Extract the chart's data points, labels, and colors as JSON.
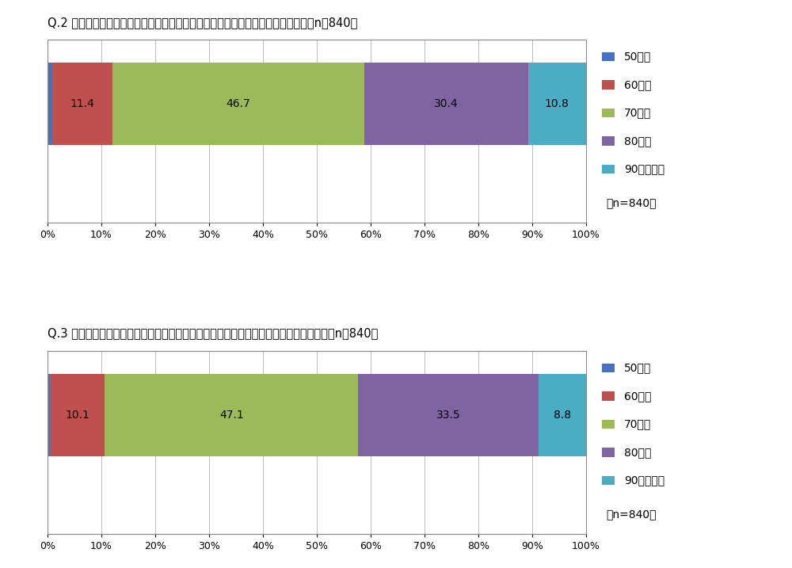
{
  "q2_title": "Q.2 あなたはいくつになったら敦老されたい／敦老されるべきだと思いますか？（n＝840）",
  "q3_title": "Q.3 あなたが敦老しなければならないと感じる相手の年齢は何歳からだと思いますか？（n＝840）",
  "categories": [
    "50歳代",
    "60歳代",
    "70歳代",
    "80歳代",
    "90歳代以上"
  ],
  "colors": [
    "#4472c4",
    "#c0504d",
    "#9bbb59",
    "#8064a2",
    "#4bacc6"
  ],
  "q2_values": [
    0.7,
    11.4,
    46.7,
    30.4,
    10.8
  ],
  "q3_values": [
    0.5,
    10.1,
    47.1,
    33.5,
    8.8
  ],
  "n_label": "（n=840）",
  "bg_color": "#ffffff",
  "chart_bg": "#ffffff",
  "grid_color": "#bbbbbb",
  "title_fontsize": 10.5,
  "label_fontsize": 10,
  "tick_fontsize": 9,
  "legend_fontsize": 10
}
